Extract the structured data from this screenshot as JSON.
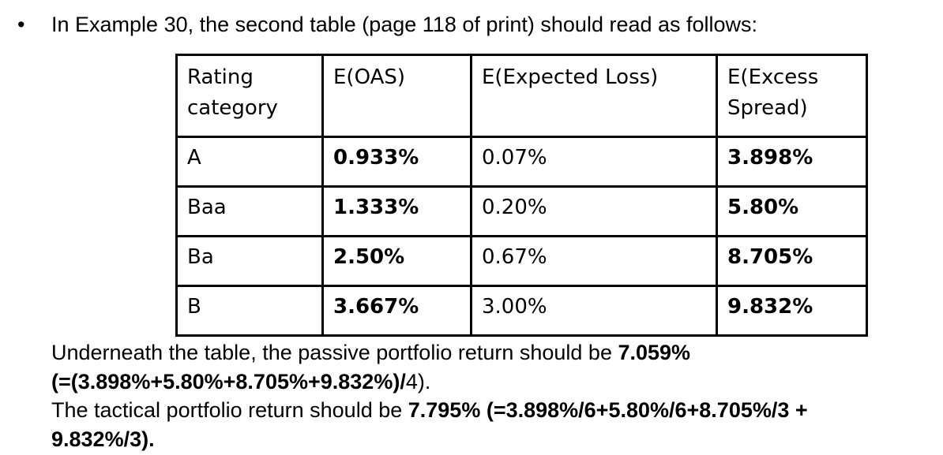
{
  "colors": {
    "text": "#000000",
    "background": "#ffffff",
    "table_border": "#000000"
  },
  "intro": {
    "bullet_char": "•",
    "text": "In Example 30, the second table (page 118 of print) should read as follows:"
  },
  "table": {
    "headers": [
      "Rating category",
      "E(OAS)",
      "E(Expected Loss)",
      "E(Excess Spread)"
    ],
    "rows": [
      [
        "A",
        "0.933%",
        "0.07%",
        "3.898%"
      ],
      [
        "Baa",
        "1.333%",
        "0.20%",
        "5.80%"
      ],
      [
        "Ba",
        "2.50%",
        "0.67%",
        "8.705%"
      ],
      [
        "B",
        "3.667%",
        "3.00%",
        "9.832%"
      ]
    ]
  },
  "notes": {
    "passive_regular": "Underneath the table, the passive portfolio return should be ",
    "passive_value": "7.059%",
    "passive_formula_bold": "(=(3.898%+5.80%+8.705%+9.832%)/",
    "passive_formula_regular": "4).",
    "tactical_regular": "The tactical portfolio return should be ",
    "tactical_bold_line1": "7.795% (=3.898%/6+5.80%/6+8.705%/3 +",
    "tactical_bold_line2": "9.832%/3)."
  }
}
